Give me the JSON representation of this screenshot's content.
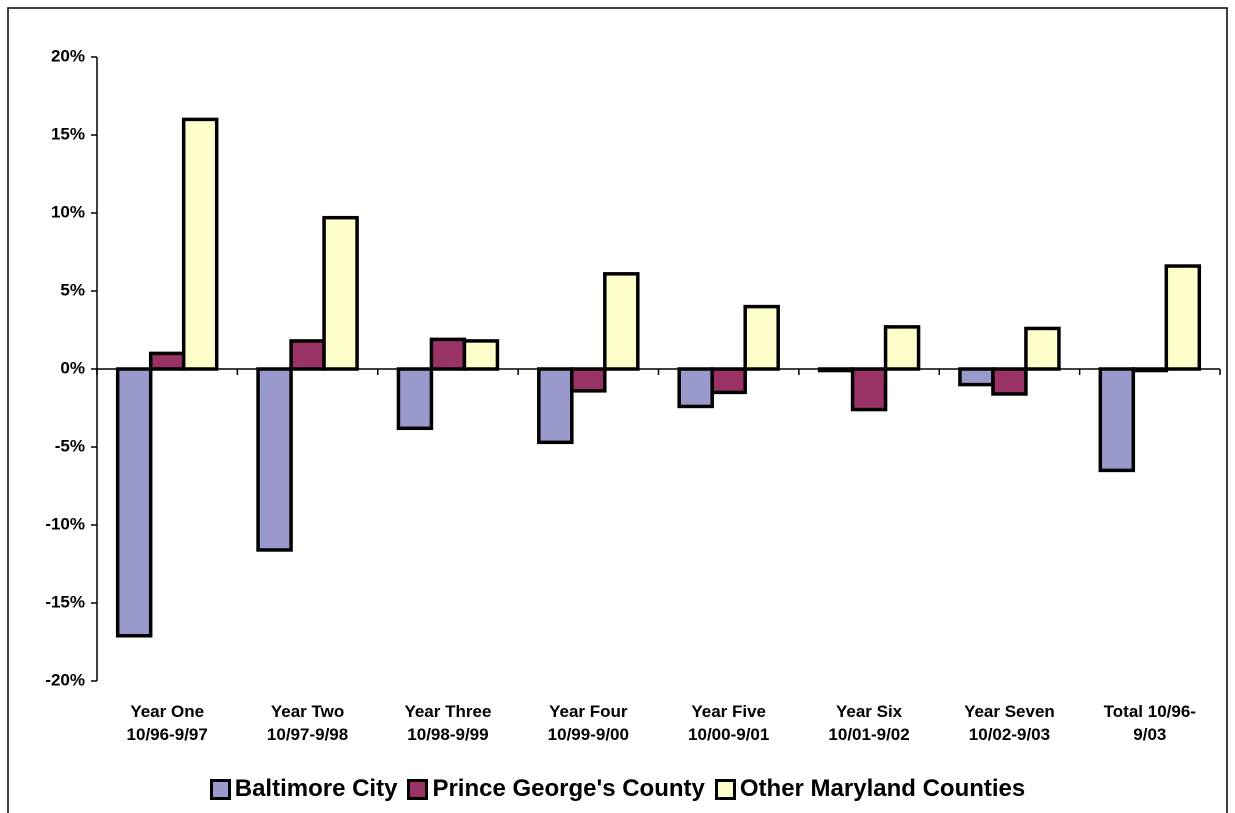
{
  "chart_data": {
    "type": "bar",
    "categories": [
      "Year One\n10/96-9/97",
      "Year Two\n10/97-9/98",
      "Year Three\n10/98-9/99",
      "Year Four\n10/99-9/00",
      "Year Five\n10/00-9/01",
      "Year Six\n10/01-9/02",
      "Year Seven\n10/02-9/03",
      "Total 10/96-\n9/03"
    ],
    "series": [
      {
        "name": "Baltimore City",
        "color": "#9999cc",
        "values": [
          -17.1,
          -11.6,
          -3.8,
          -4.7,
          -2.4,
          -0.1,
          -1.0,
          -6.5
        ]
      },
      {
        "name": "Prince George's County",
        "color": "#993366",
        "values": [
          1.0,
          1.8,
          1.9,
          -1.4,
          -1.5,
          -2.6,
          -1.6,
          -0.1
        ]
      },
      {
        "name": "Other Maryland Counties",
        "color": "#ffffcc",
        "values": [
          16.0,
          9.7,
          1.8,
          6.1,
          4.0,
          2.7,
          2.6,
          6.6
        ]
      }
    ],
    "ylim": [
      -20,
      20
    ],
    "yticks": [
      {
        "value": -20,
        "label": "-20%"
      },
      {
        "value": -15,
        "label": "-15%"
      },
      {
        "value": -10,
        "label": "-10%"
      },
      {
        "value": -5,
        "label": "-5%"
      },
      {
        "value": 0,
        "label": "0%"
      },
      {
        "value": 5,
        "label": "5%"
      },
      {
        "value": 10,
        "label": "10%"
      },
      {
        "value": 15,
        "label": "15%"
      },
      {
        "value": 20,
        "label": "20%"
      }
    ],
    "legend": "bottom"
  }
}
